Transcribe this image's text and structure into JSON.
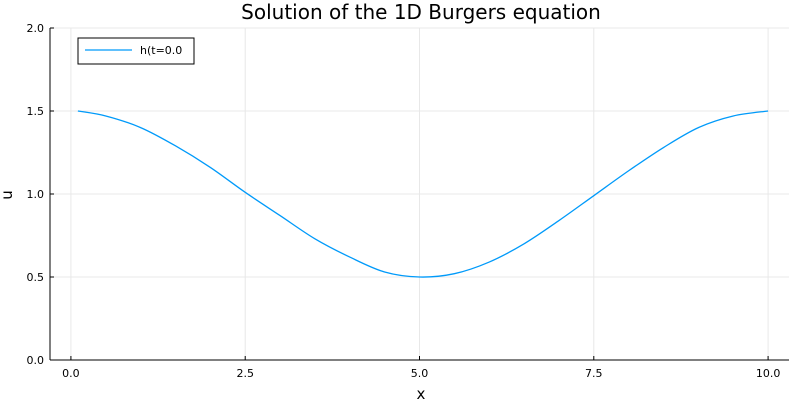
{
  "chart_data": {
    "type": "line",
    "title": "Solution of the 1D Burgers equation",
    "xlabel": "x",
    "ylabel": "u",
    "xlim": [
      -0.3,
      10.3
    ],
    "ylim": [
      0.0,
      2.0
    ],
    "xticks": [
      0.0,
      2.5,
      5.0,
      7.5,
      10.0
    ],
    "xtick_labels": [
      "0.0",
      "2.5",
      "5.0",
      "7.5",
      "10.0"
    ],
    "yticks": [
      0.0,
      0.5,
      1.0,
      1.5,
      2.0
    ],
    "ytick_labels": [
      "0.0",
      "0.5",
      "1.0",
      "1.5",
      "2.0"
    ],
    "grid": true,
    "legend_position": "top-left",
    "series": [
      {
        "name": "h(t=0.0",
        "color": "#009AFA",
        "x": [
          0.1,
          0.5,
          1.0,
          1.5,
          2.0,
          2.5,
          3.0,
          3.5,
          4.0,
          4.5,
          5.0,
          5.5,
          6.0,
          6.5,
          7.0,
          7.5,
          8.0,
          8.5,
          9.0,
          9.5,
          10.0
        ],
        "y": [
          1.5,
          1.47,
          1.4,
          1.29,
          1.16,
          1.01,
          0.87,
          0.73,
          0.62,
          0.53,
          0.5,
          0.52,
          0.59,
          0.7,
          0.84,
          0.99,
          1.14,
          1.28,
          1.4,
          1.47,
          1.5
        ]
      }
    ]
  }
}
